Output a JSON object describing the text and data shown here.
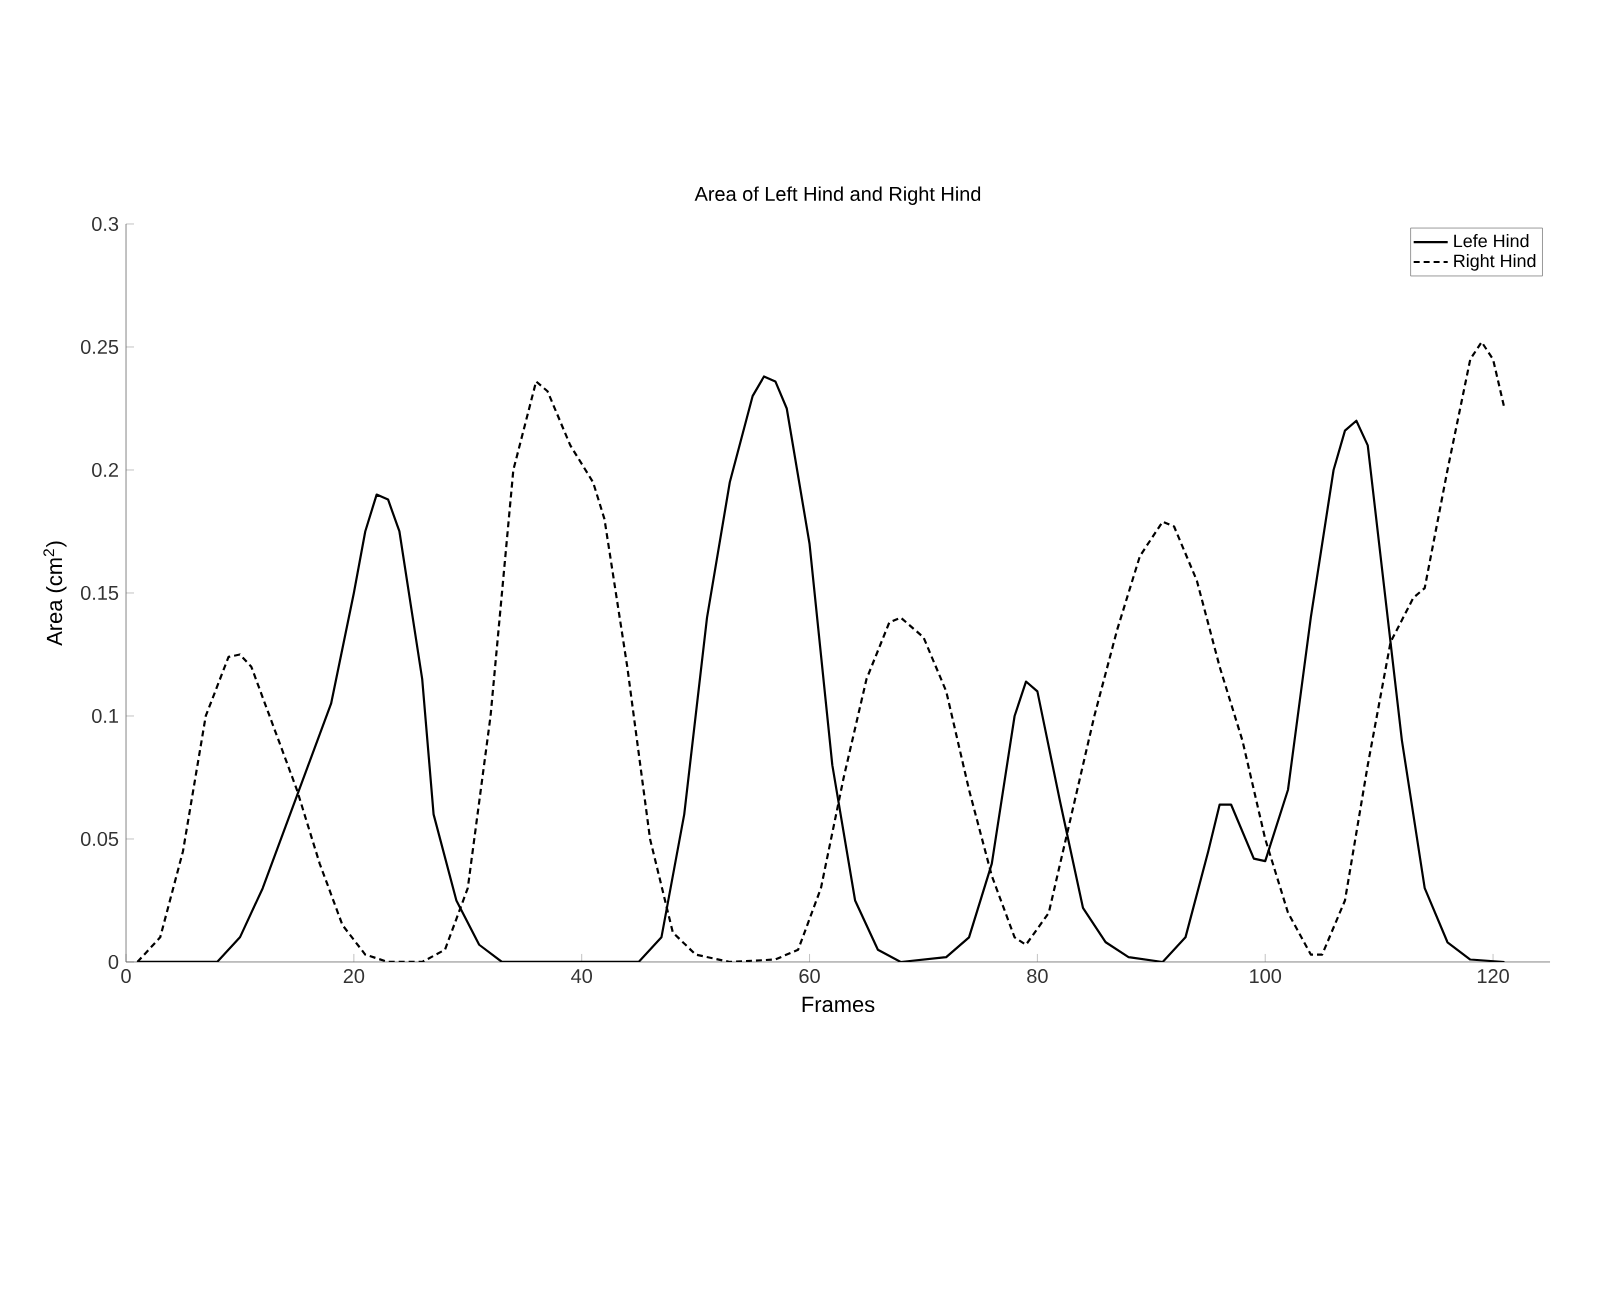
{
  "chart_data": {
    "type": "line",
    "title": "Area of Left Hind and Right Hind",
    "xlabel": "Frames",
    "ylabel": "Area (cm$^{2}$)",
    "xlim": [
      0,
      125
    ],
    "xticks": [
      0,
      20,
      40,
      60,
      80,
      100,
      120
    ],
    "ylim": [
      0,
      0.3
    ],
    "yticks": [
      0,
      0.05,
      0.1,
      0.15,
      0.2,
      0.25,
      0.3
    ],
    "legend": "top right",
    "grid": false,
    "marker": "none",
    "series": [
      {
        "name": "Lefe Hind",
        "color": "#000000",
        "line_style": "solid",
        "x": [
          1,
          8,
          10,
          12,
          14,
          16,
          18,
          20,
          21,
          22,
          23,
          24,
          26,
          27,
          29,
          31,
          33,
          45,
          47,
          49,
          51,
          53,
          55,
          56,
          57,
          58,
          60,
          62,
          64,
          66,
          68,
          72,
          74,
          76,
          78,
          79,
          80,
          82,
          84,
          86,
          88,
          91,
          93,
          95,
          96,
          97,
          99,
          100,
          102,
          104,
          106,
          107,
          108,
          109,
          110,
          112,
          114,
          116,
          118,
          121
        ],
        "values": [
          0,
          0,
          0.01,
          0.03,
          0.055,
          0.08,
          0.105,
          0.15,
          0.175,
          0.19,
          0.188,
          0.175,
          0.115,
          0.06,
          0.025,
          0.007,
          0,
          0,
          0.01,
          0.06,
          0.14,
          0.195,
          0.23,
          0.238,
          0.236,
          0.225,
          0.17,
          0.08,
          0.025,
          0.005,
          0,
          0.002,
          0.01,
          0.04,
          0.1,
          0.114,
          0.11,
          0.065,
          0.022,
          0.008,
          0.002,
          0,
          0.01,
          0.045,
          0.064,
          0.064,
          0.042,
          0.041,
          0.07,
          0.14,
          0.2,
          0.216,
          0.22,
          0.21,
          0.17,
          0.09,
          0.03,
          0.008,
          0.001,
          0
        ]
      },
      {
        "name": "Right Hind",
        "color": "#000000",
        "line_style": "dashed",
        "x": [
          1,
          3,
          5,
          7,
          9,
          10,
          11,
          13,
          15,
          17,
          19,
          21,
          23,
          26,
          28,
          30,
          32,
          34,
          36,
          37,
          39,
          41,
          42,
          44,
          46,
          48,
          50,
          53,
          57,
          59,
          61,
          63,
          65,
          67,
          68,
          70,
          72,
          74,
          76,
          78,
          79,
          81,
          83,
          85,
          87,
          89,
          91,
          92,
          94,
          96,
          98,
          100,
          102,
          104,
          105,
          107,
          109,
          111,
          113,
          114,
          116,
          118,
          119,
          120,
          121
        ],
        "values": [
          0,
          0.01,
          0.045,
          0.1,
          0.124,
          0.125,
          0.12,
          0.095,
          0.07,
          0.04,
          0.015,
          0.003,
          0,
          0,
          0.005,
          0.03,
          0.1,
          0.2,
          0.236,
          0.232,
          0.21,
          0.195,
          0.18,
          0.12,
          0.05,
          0.012,
          0.003,
          0,
          0.001,
          0.005,
          0.03,
          0.075,
          0.115,
          0.138,
          0.14,
          0.132,
          0.11,
          0.07,
          0.035,
          0.01,
          0.007,
          0.02,
          0.06,
          0.1,
          0.135,
          0.165,
          0.179,
          0.177,
          0.155,
          0.12,
          0.09,
          0.05,
          0.02,
          0.003,
          0.003,
          0.025,
          0.08,
          0.13,
          0.148,
          0.152,
          0.2,
          0.245,
          0.252,
          0.245,
          0.225
        ]
      }
    ]
  }
}
